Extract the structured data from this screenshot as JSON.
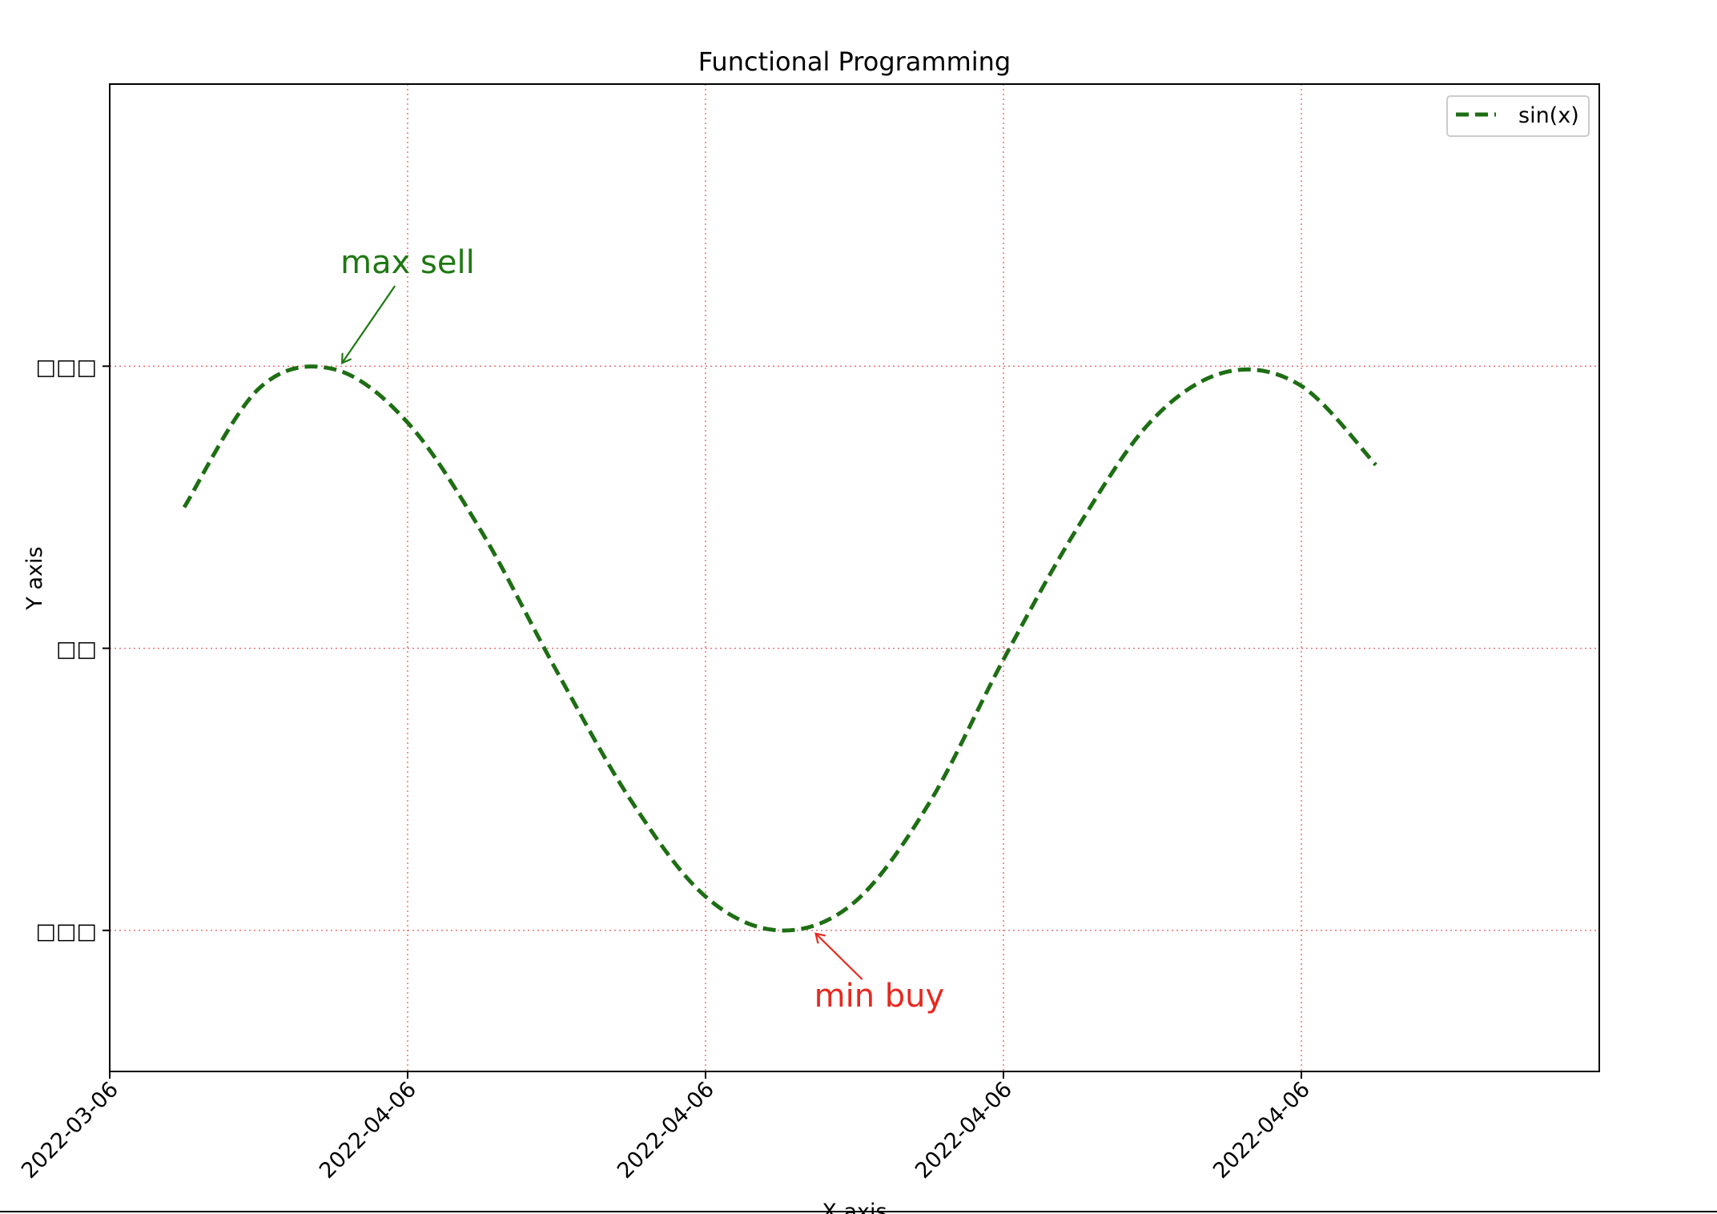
{
  "chart_data": {
    "type": "line",
    "title": "Functional Programming",
    "xlabel": "X axis",
    "ylabel": "Y axis",
    "x_tick_labels": [
      "2022-03-06",
      "2022-04-06",
      "2022-04-06",
      "2022-04-06",
      "2022-04-06"
    ],
    "y_tick_labels": [
      "□□□",
      "□□",
      "□□□"
    ],
    "y_tick_values": [
      1,
      0,
      -1
    ],
    "xlim": [
      0,
      5
    ],
    "ylim": [
      -1.5,
      2
    ],
    "grid": true,
    "legend_placement": "top-right",
    "series": [
      {
        "name": "sin(x)",
        "color": "#1e6e14",
        "style": "dashed",
        "x": [
          0.25,
          0.5,
          0.75,
          1.0,
          1.25,
          1.5,
          1.75,
          2.0,
          2.25,
          2.5,
          2.75,
          3.0,
          3.25,
          3.5,
          3.75,
          4.0,
          4.25
        ],
        "y": [
          0.5,
          0.92,
          0.99,
          0.8,
          0.41,
          -0.08,
          -0.54,
          -0.88,
          -1.0,
          -0.9,
          -0.55,
          -0.04,
          0.43,
          0.81,
          0.98,
          0.93,
          0.65
        ]
      }
    ],
    "annotations": [
      {
        "text": "max sell",
        "color": "#1e7812",
        "x": 0.78,
        "y": 1.0,
        "text_x": 0.78,
        "text_y": 1.33
      },
      {
        "text": "min buy",
        "color": "#e8281e",
        "x": 2.37,
        "y": -1.0,
        "text_x": 2.37,
        "text_y": -1.27
      }
    ]
  }
}
